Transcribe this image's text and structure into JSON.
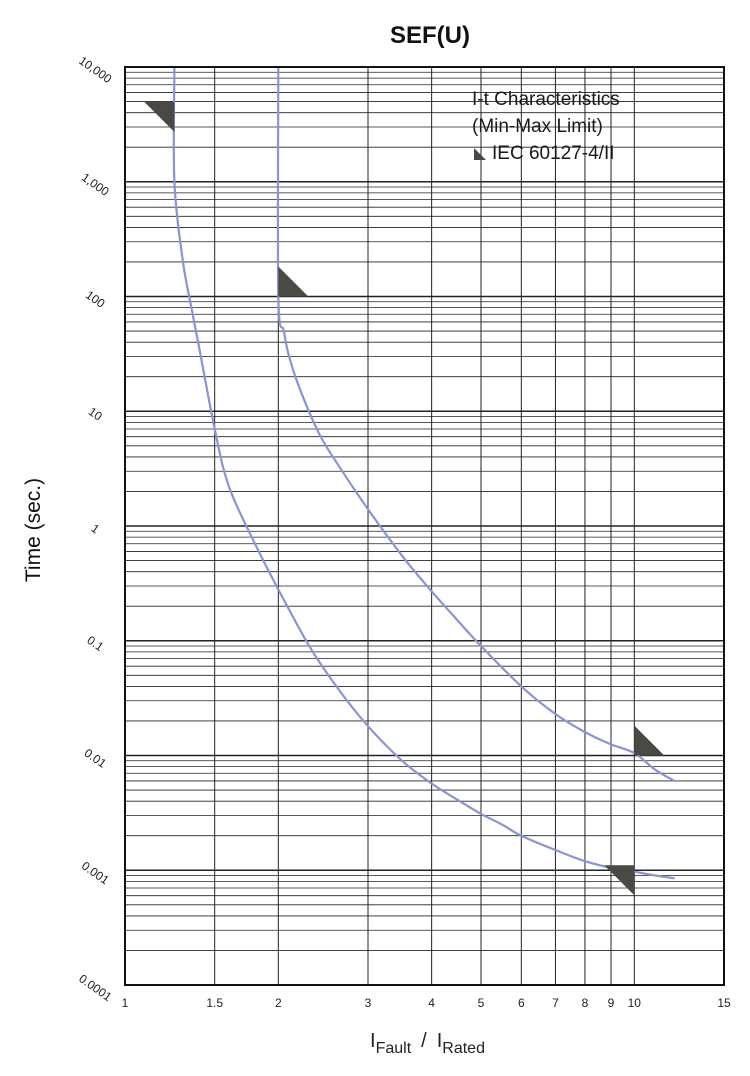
{
  "chart_data": {
    "type": "line",
    "title": "SEF(U)",
    "ylabel": "Time (sec.)",
    "xlabel_parts": [
      "I",
      "Fault",
      "/",
      "I",
      "Rated"
    ],
    "xscale": "log",
    "yscale": "log",
    "xlim": [
      1,
      15
    ],
    "ylim": [
      0.0001,
      10000
    ],
    "grid": true,
    "x_ticks": [
      1,
      1.5,
      2,
      3,
      4,
      5,
      6,
      7,
      8,
      9,
      10,
      15
    ],
    "x_tick_labels": [
      "1",
      "1.5",
      "2",
      "3",
      "4",
      "5",
      "6",
      "7",
      "8",
      "9",
      "10",
      "15"
    ],
    "y_ticks": [
      0.0001,
      0.001,
      0.01,
      0.1,
      1,
      10,
      100,
      1000,
      10000
    ],
    "y_tick_labels": [
      "0.0001",
      "0.001",
      "0.01",
      "0.1",
      "1",
      "10",
      "100",
      "1,000",
      "10,000"
    ],
    "legend_lines": [
      "I-t Characteristics",
      "(Min-Max Limit)",
      "IEC 60127-4/II"
    ],
    "legend_position": "top-right",
    "series": [
      {
        "x": [
          1.25,
          1.25,
          1.3,
          1.35,
          1.4,
          1.5,
          1.6,
          1.8,
          2.0,
          2.3,
          2.6,
          3.0,
          3.5,
          4.0,
          4.5,
          5.0,
          5.5,
          6.0,
          7.0,
          8.0,
          9.0,
          10.0,
          11.0,
          12.0
        ],
        "y": [
          10000,
          1000,
          200,
          80,
          35,
          7,
          2.2,
          0.7,
          0.28,
          0.09,
          0.04,
          0.018,
          0.009,
          0.0057,
          0.0041,
          0.0031,
          0.0025,
          0.002,
          0.0015,
          0.0012,
          0.00105,
          0.00097,
          0.0009,
          0.00085
        ],
        "color": "#8a93d6"
      },
      {
        "x": [
          2.0,
          2.0,
          2.05,
          2.1,
          2.2,
          2.4,
          2.6,
          3.0,
          3.5,
          4.0,
          4.5,
          5.0,
          6.0,
          7.0,
          8.0,
          9.0,
          10.0,
          11.0,
          12.0
        ],
        "y": [
          10000,
          100,
          50,
          30,
          16,
          6.5,
          3.6,
          1.4,
          0.55,
          0.27,
          0.15,
          0.09,
          0.04,
          0.023,
          0.016,
          0.0125,
          0.0105,
          0.0075,
          0.006
        ],
        "color": "#8a93d6"
      }
    ],
    "limit_markers": [
      {
        "x": 1.25,
        "y": 3000,
        "shape": "wedge-left"
      },
      {
        "x": 2.0,
        "y": 100,
        "shape": "wedge-right"
      },
      {
        "x": 10.0,
        "y": 0.01,
        "shape": "wedge-right"
      },
      {
        "x": 10.0,
        "y": 0.001,
        "shape": "wedge-left-down"
      }
    ],
    "colors": {
      "curve": "#8a93d6",
      "grid": "#222222",
      "marker": "#4a4a44"
    }
  }
}
